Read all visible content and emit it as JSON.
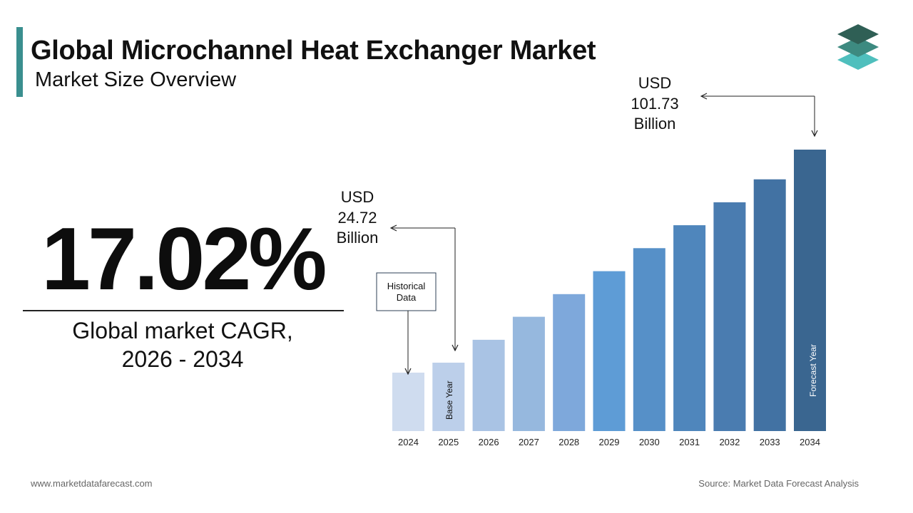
{
  "header": {
    "title": "Global Microchannel Heat Exchanger Market",
    "subtitle": "Market Size Overview"
  },
  "kpi": {
    "cagr_value": "17.02%",
    "cagr_label_line1": "Global market CAGR,",
    "cagr_label_line2": "2026 - 2034"
  },
  "footer": {
    "website": "www.marketdatafarecast.com",
    "source": "Source: Market Data Forecast Analysis"
  },
  "colors": {
    "accent": "#3a8f8f",
    "logo_top": "#2f5f55",
    "logo_mid": "#3d8a80",
    "logo_bottom": "#4fbfbd"
  },
  "chart_data": {
    "type": "bar",
    "categories": [
      "2024",
      "2025",
      "2026",
      "2027",
      "2028",
      "2029",
      "2030",
      "2031",
      "2032",
      "2033",
      "2034"
    ],
    "values": [
      21.13,
      24.72,
      33.0,
      41.3,
      49.5,
      57.8,
      66.1,
      74.4,
      82.7,
      91.0,
      101.73
    ],
    "colors": [
      "#cfdcef",
      "#bccfea",
      "#a9c3e4",
      "#96b8de",
      "#7ea8db",
      "#5e9cd6",
      "#5690c8",
      "#4f86bc",
      "#4a7cb0",
      "#4272a3",
      "#3a6690"
    ],
    "ylim": [
      0,
      101.73
    ],
    "grid": false,
    "legend": "none",
    "annotations": {
      "base": {
        "prefix": "USD",
        "value": "24.72",
        "unit": "Billion"
      },
      "forecast": {
        "prefix": "USD",
        "value": "101.73",
        "unit": "Billion"
      },
      "historical_box": [
        "Historical",
        "Data"
      ],
      "base_year_label": "Base Year",
      "forecast_year_label": "Forecast Year"
    }
  }
}
